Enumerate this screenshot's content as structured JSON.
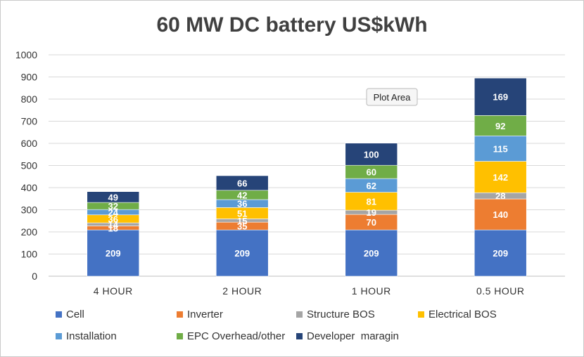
{
  "chart_data": {
    "type": "bar",
    "stacked": true,
    "title": "60 MW DC battery US$kWh",
    "xlabel": "",
    "ylabel": "",
    "ylim": [
      0,
      1000
    ],
    "yticks": [
      0,
      100,
      200,
      300,
      400,
      500,
      600,
      700,
      800,
      900,
      1000
    ],
    "grid": true,
    "legend": "bottom",
    "categories": [
      "4 HOUR",
      "2 HOUR",
      "1 HOUR",
      "0.5 HOUR"
    ],
    "series": [
      {
        "name": "Cell",
        "color": "#4472c4",
        "values": [
          209,
          209,
          209,
          209
        ]
      },
      {
        "name": "Inverter",
        "color": "#ed7d31",
        "values": [
          18,
          35,
          70,
          140
        ]
      },
      {
        "name": "Structure BOS",
        "color": "#a5a5a5",
        "values": [
          14,
          15,
          19,
          28
        ]
      },
      {
        "name": "Electrical BOS",
        "color": "#ffc000",
        "values": [
          36,
          51,
          81,
          142
        ]
      },
      {
        "name": "Installation",
        "color": "#5b9bd5",
        "values": [
          24,
          36,
          62,
          115
        ]
      },
      {
        "name": "EPC Overhead/other",
        "color": "#70ad47",
        "values": [
          32,
          42,
          60,
          92
        ]
      },
      {
        "name": "Developer  maragin",
        "color": "#264478",
        "values": [
          49,
          66,
          100,
          169
        ]
      }
    ],
    "data_labels": [
      [
        "209",
        "18",
        "14",
        "36",
        "24",
        "32",
        "49"
      ],
      [
        "209",
        "35",
        "15",
        "51",
        "36",
        "42",
        "66"
      ],
      [
        "209",
        "70",
        "19",
        "81",
        "62",
        "60",
        "100"
      ],
      [
        "209",
        "140",
        "28",
        "142",
        "115",
        "92",
        "169"
      ]
    ]
  },
  "tooltip": {
    "label": "Plot Area"
  }
}
